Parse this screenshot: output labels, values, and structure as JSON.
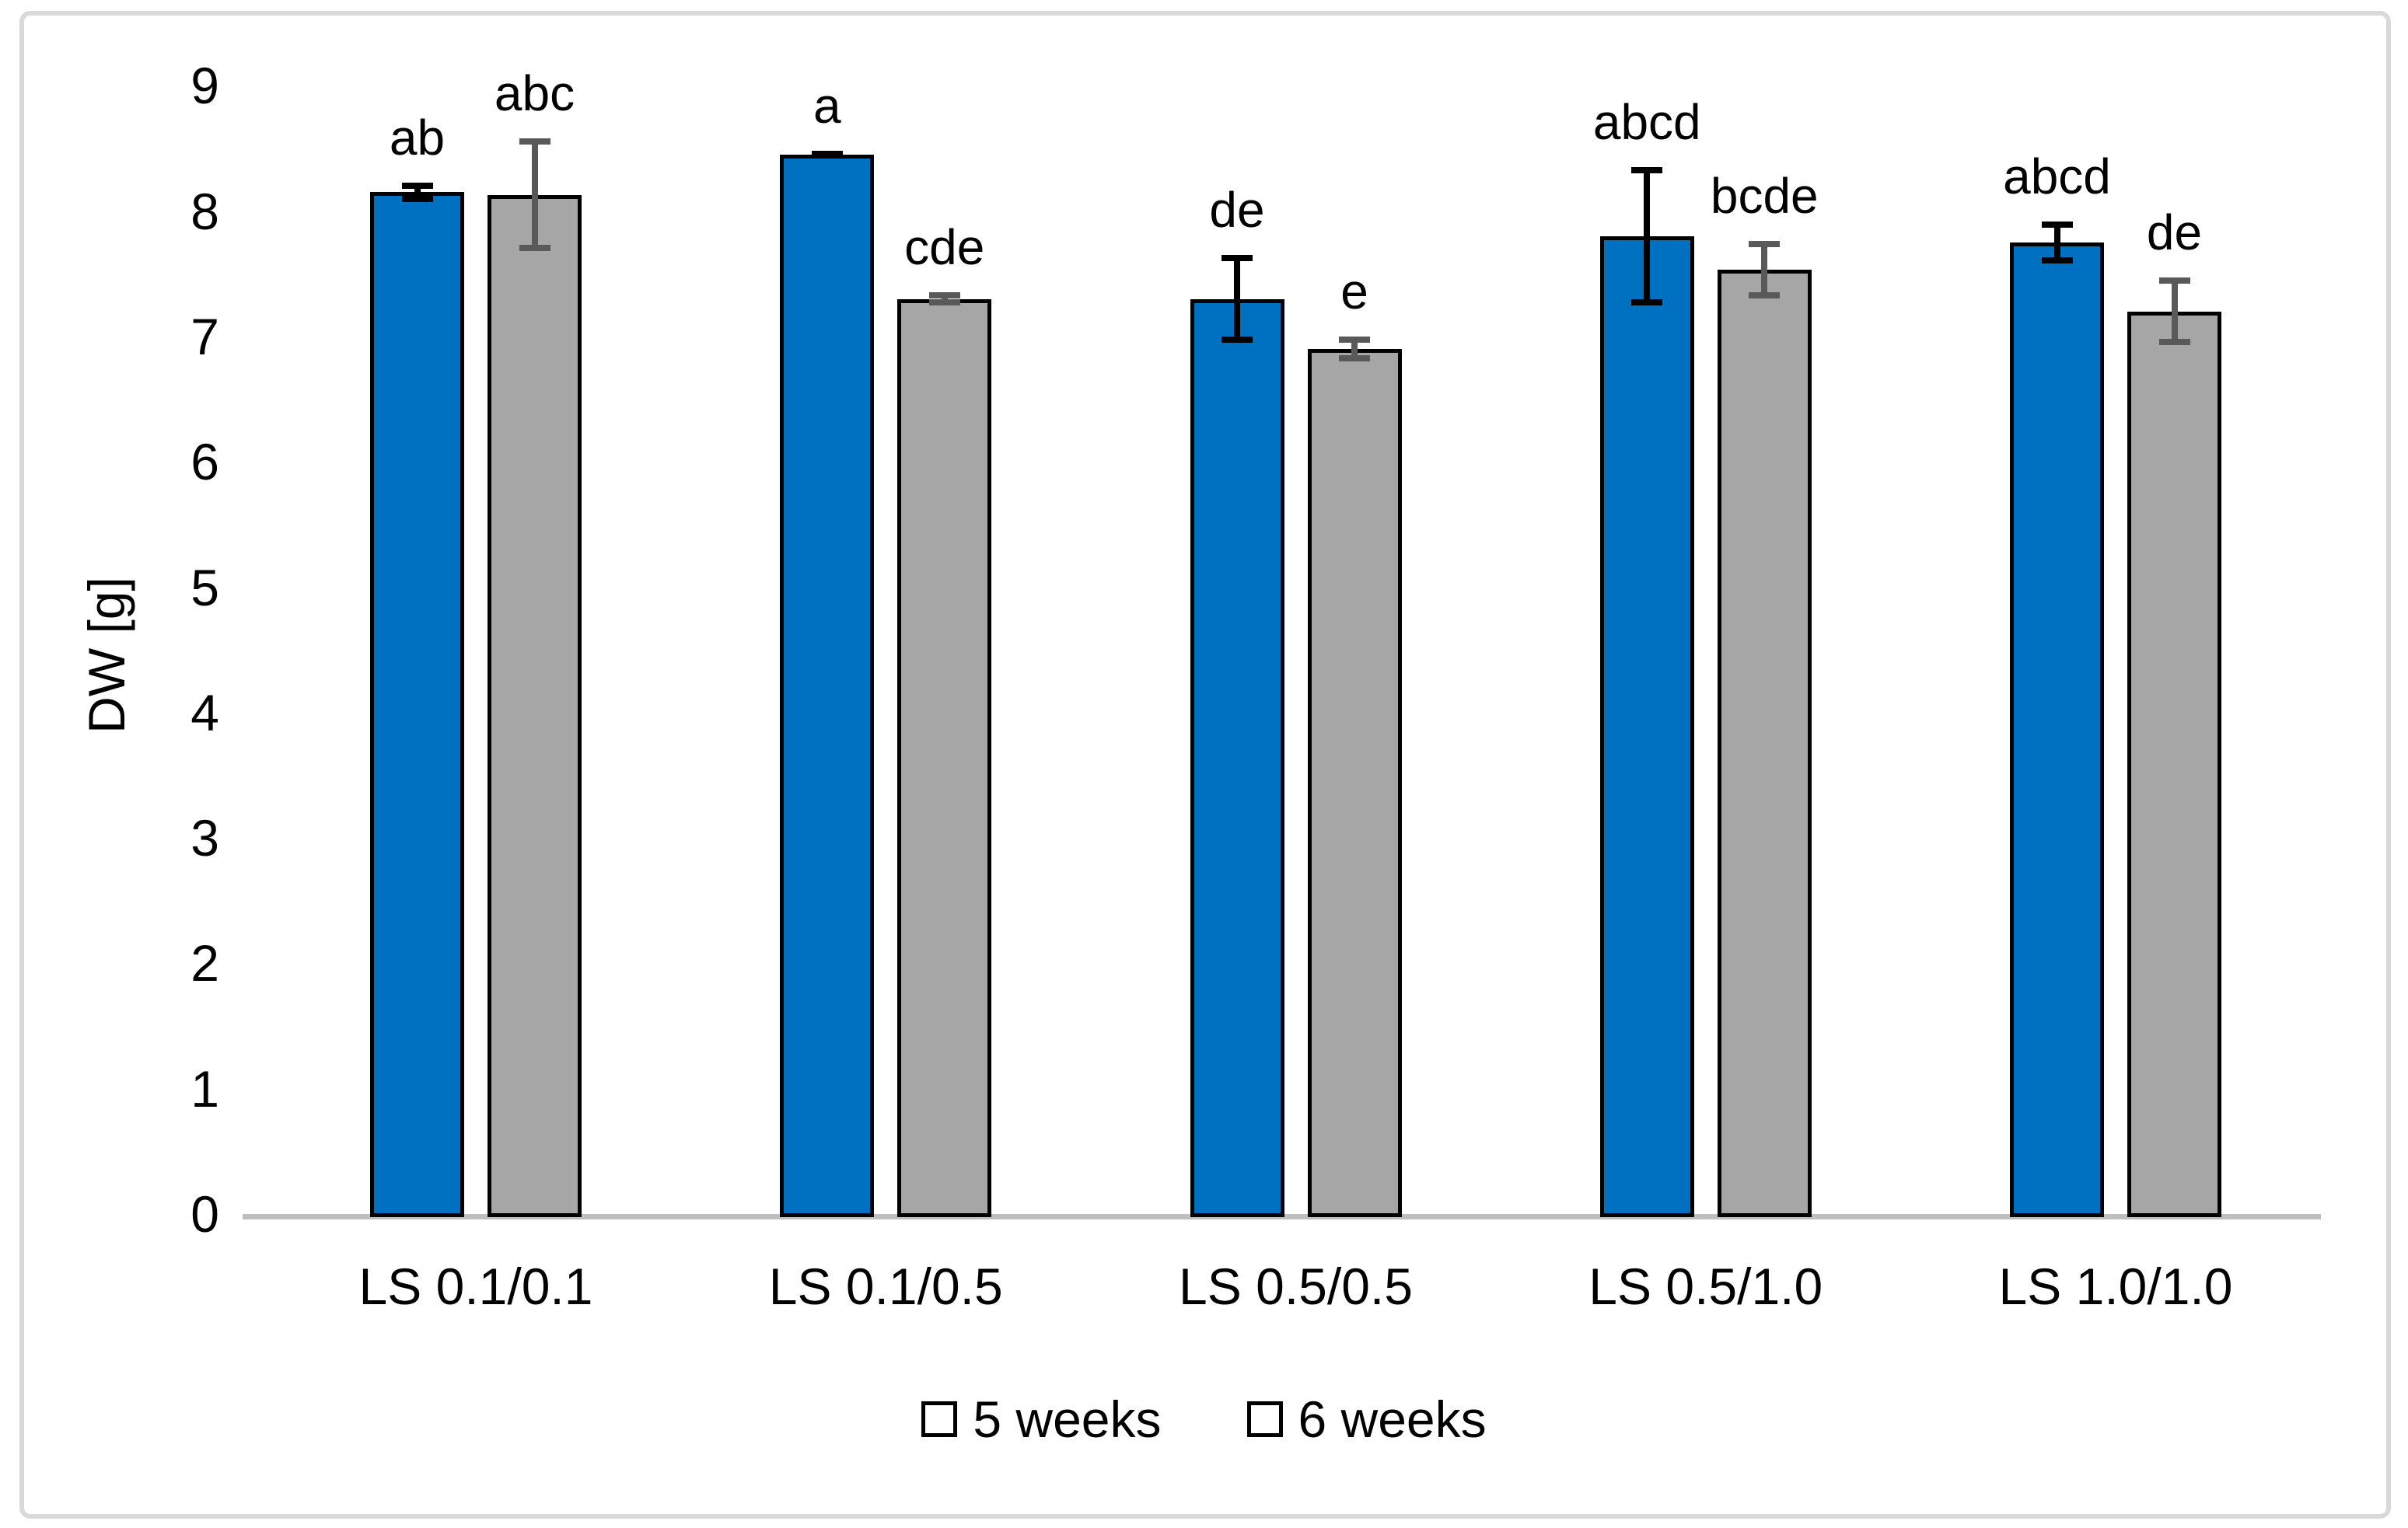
{
  "figure": {
    "background": "#FFFFFF",
    "frame_color": "#D9D9D9",
    "axis_line_color": "#BFBFBF",
    "text_color": "#000000"
  },
  "chart_data": {
    "type": "bar",
    "title": "",
    "xlabel": "",
    "ylabel": "DW [g]",
    "ylim": [
      0,
      9
    ],
    "yticks": [
      0,
      1,
      2,
      3,
      4,
      5,
      6,
      7,
      8,
      9
    ],
    "grid": false,
    "legend_position": "bottom-center",
    "categories": [
      "LS 0.1/0.1",
      "LS 0.1/0.5",
      "LS 0.5/0.5",
      "LS 0.5/1.0",
      "LS 1.0/1.0"
    ],
    "series": [
      {
        "name": "5 weeks",
        "color": "#0070C0",
        "error_bar_color": "#000000",
        "values": [
          8.15,
          8.45,
          7.3,
          7.8,
          7.75
        ],
        "errors": [
          0.08,
          0.03,
          0.35,
          0.55,
          0.17
        ],
        "significance_letters": [
          "ab",
          "a",
          "de",
          "abcd",
          "abcd"
        ]
      },
      {
        "name": "6 weeks",
        "color": "#A6A6A6",
        "error_bar_color": "#595959",
        "values": [
          8.13,
          7.3,
          6.9,
          7.53,
          7.2
        ],
        "errors": [
          0.45,
          0.05,
          0.1,
          0.23,
          0.27
        ],
        "significance_letters": [
          "abc",
          "cde",
          "e",
          "bcde",
          "de"
        ]
      }
    ]
  }
}
